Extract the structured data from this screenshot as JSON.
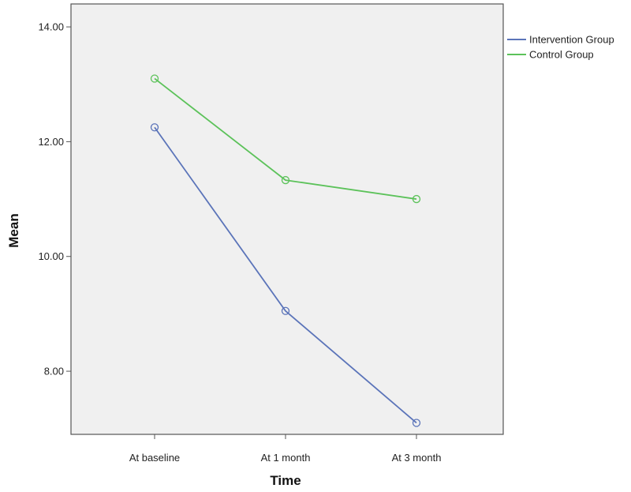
{
  "chart_data": {
    "type": "line",
    "title": "",
    "xlabel": "Time",
    "ylabel": "Mean",
    "categories": [
      "At baseline",
      "At 1 month",
      "At 3 month"
    ],
    "ylim": [
      6.9,
      14.4
    ],
    "yticks": [
      "8.00",
      "10.00",
      "12.00",
      "14.00"
    ],
    "grid": false,
    "legend_position": "right",
    "series": [
      {
        "name": "Intervention Group",
        "color": "#5b74b9",
        "values": [
          12.25,
          9.05,
          7.1
        ]
      },
      {
        "name": "Control Group",
        "color": "#5cc25a",
        "values": [
          13.1,
          11.33,
          11.0
        ]
      }
    ]
  }
}
